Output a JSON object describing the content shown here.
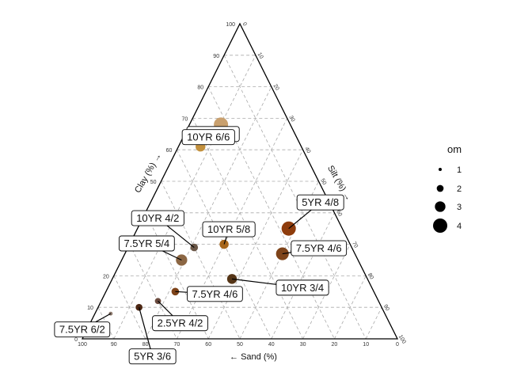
{
  "chart_data": {
    "type": "scatter",
    "subtype": "ternary",
    "axes": {
      "clay": {
        "label": "Clay (%) →",
        "range": [
          0,
          100
        ]
      },
      "silt": {
        "label": "Silt (%) →",
        "range": [
          0,
          100
        ]
      },
      "sand": {
        "label": "← Sand (%)",
        "range": [
          0,
          100
        ]
      }
    },
    "ticks": [
      0,
      10,
      20,
      30,
      40,
      50,
      60,
      70,
      80,
      90,
      100
    ],
    "grid": true,
    "points": [
      {
        "label": "10YR 7/4",
        "sand": 22,
        "silt": 10,
        "clay": 68,
        "om": 4.0,
        "color": "#C9A06E",
        "label_side": "left"
      },
      {
        "label": "10YR 6/6",
        "sand": 32,
        "silt": 7,
        "clay": 61,
        "om": 2.8,
        "color": "#C3913E",
        "label_side": "left"
      },
      {
        "label": "5YR 4/8",
        "sand": 17,
        "silt": 48,
        "clay": 35,
        "om": 4.0,
        "color": "#8E3C0C",
        "label_side": "right"
      },
      {
        "label": "10YR 4/2",
        "sand": 50,
        "silt": 21,
        "clay": 29,
        "om": 2.2,
        "color": "#6B5747",
        "label_side": "left"
      },
      {
        "label": "10YR 5/8",
        "sand": 40,
        "silt": 30,
        "clay": 30,
        "om": 2.6,
        "color": "#A7661A",
        "label_side": "left"
      },
      {
        "label": "7.5YR 5/4",
        "sand": 56,
        "silt": 19,
        "clay": 25,
        "om": 3.2,
        "color": "#8B6643",
        "label_side": "left"
      },
      {
        "label": "7.5YR 4/6",
        "sand": 23,
        "silt": 50,
        "clay": 27,
        "om": 3.6,
        "color": "#7E4319",
        "label_side": "right"
      },
      {
        "label": "10YR 3/4",
        "sand": 43,
        "silt": 38,
        "clay": 19,
        "om": 2.8,
        "color": "#553517",
        "label_side": "right"
      },
      {
        "label": "7.5YR 4/6",
        "sand": 63,
        "silt": 22,
        "clay": 15,
        "om": 2.2,
        "color": "#7E4319",
        "label_side": "right"
      },
      {
        "label": "2.5YR 4/2",
        "sand": 70,
        "silt": 18,
        "clay": 12,
        "om": 1.8,
        "color": "#6B4B3F",
        "label_side": "right"
      },
      {
        "label": "5YR 3/6",
        "sand": 77,
        "silt": 13,
        "clay": 10,
        "om": 2.0,
        "color": "#4D2713",
        "label_side": "below"
      },
      {
        "label": "7.5YR 6/2",
        "sand": 87,
        "silt": 5,
        "clay": 8,
        "om": 1.2,
        "color": "#8D7A6E",
        "label_side": "below-left"
      }
    ],
    "legend": {
      "title": "om",
      "position": "right",
      "entries": [
        {
          "label": "1",
          "value": 1
        },
        {
          "label": "2",
          "value": 2
        },
        {
          "label": "3",
          "value": 3
        },
        {
          "label": "4",
          "value": 4
        }
      ]
    }
  }
}
